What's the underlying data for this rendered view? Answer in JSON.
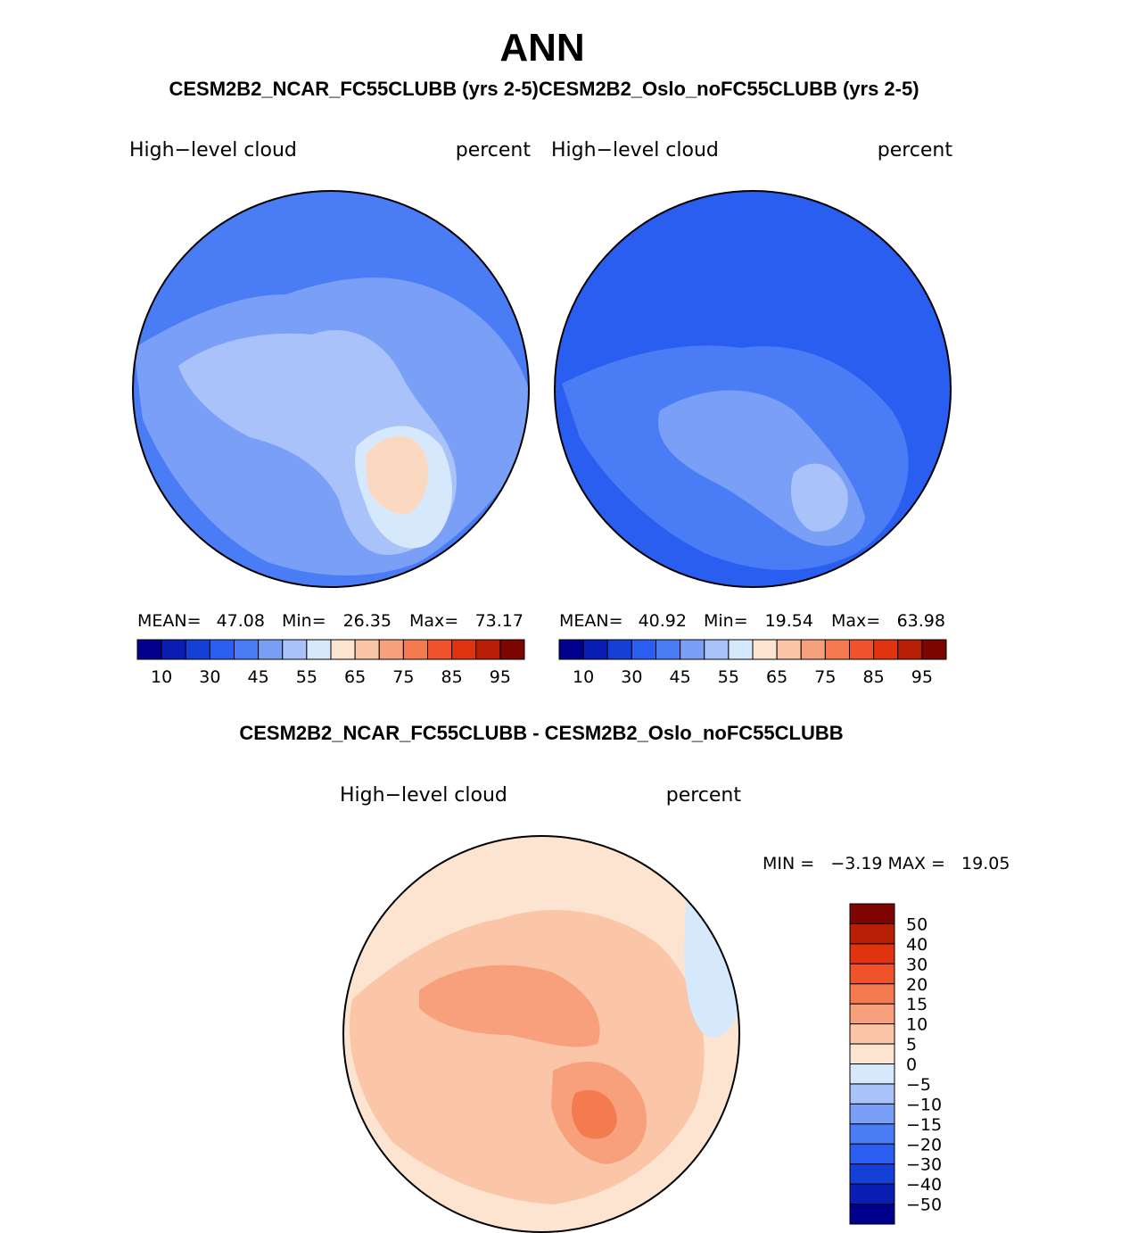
{
  "title": "ANN",
  "subtitle": "CESM2B2_NCAR_FC55CLUBB (yrs 2-5)CESM2B2_Oslo_noFC55CLUBB (yrs 2-5)",
  "diff_title": "CESM2B2_NCAR_FC55CLUBB - CESM2B2_Oslo_noFC55CLUBB",
  "panels": [
    {
      "variable": "High−level cloud",
      "units": "percent",
      "stats": {
        "mean_label": "MEAN=",
        "mean": "47.08",
        "min_label": "Min=",
        "min": "26.35",
        "max_label": "Max=",
        "max": "73.17"
      }
    },
    {
      "variable": "High−level cloud",
      "units": "percent",
      "stats": {
        "mean_label": "MEAN=",
        "mean": "40.92",
        "min_label": "Min=",
        "min": "19.54",
        "max_label": "Max=",
        "max": "63.98"
      }
    }
  ],
  "diff_panel": {
    "variable": "High−level cloud",
    "units": "percent",
    "minmax": "MIN =   −3.19 MAX =   19.05"
  },
  "colorbar_top": {
    "colors": [
      "#00008c",
      "#0a1eb4",
      "#1440d7",
      "#2a5ef0",
      "#4a7cf5",
      "#7a9ff7",
      "#a9c2fa",
      "#d6e8fb",
      "#fde4d0",
      "#fbc5a7",
      "#f8a07c",
      "#f47a50",
      "#f0522b",
      "#e03410",
      "#b82006",
      "#7d0502"
    ],
    "labels": [
      "10",
      "30",
      "45",
      "55",
      "65",
      "75",
      "85",
      "95"
    ]
  },
  "colorbar_diff": {
    "colors": [
      "#00008c",
      "#0a1eb4",
      "#1440d7",
      "#2a5ef0",
      "#4a7cf5",
      "#7a9ff7",
      "#a9c2fa",
      "#d6e8fb",
      "#fde4d0",
      "#fbc5a7",
      "#f8a07c",
      "#f47a50",
      "#f0522b",
      "#e03410",
      "#b82006",
      "#7d0502"
    ],
    "labels": [
      "50",
      "40",
      "30",
      "20",
      "15",
      "10",
      "5",
      "0",
      "−5",
      "−10",
      "−15",
      "−20",
      "−30",
      "−40",
      "−50"
    ]
  },
  "map_colors": {
    "p1_base": "#4a7cf5",
    "p1_mid": "#7a9ff7",
    "p1_light": "#a9c2fa",
    "p1_pale": "#d6e8fb",
    "p1_warm": "#fbd9c0",
    "p2_base": "#2a5ef0",
    "p2_mid": "#4a7cf5",
    "p2_light": "#7a9ff7",
    "p2_pale": "#a9c2fa",
    "d_base": "#fde4d0",
    "d_mid": "#fbc5a7",
    "d_strong": "#f8a07c",
    "d_hot": "#f47a50",
    "d_neg": "#d6e8fb"
  }
}
